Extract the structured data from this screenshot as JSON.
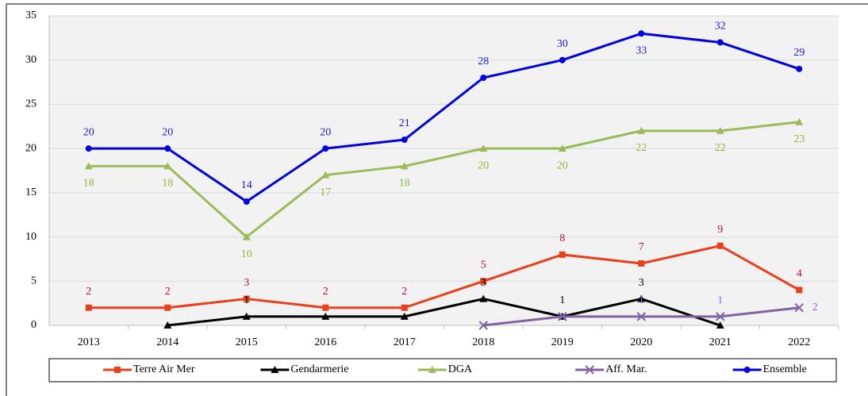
{
  "chart_data": {
    "type": "line",
    "categories": [
      "2013",
      "2014",
      "2015",
      "2016",
      "2017",
      "2018",
      "2019",
      "2020",
      "2021",
      "2022"
    ],
    "series": [
      {
        "name": "Terre Air Mer",
        "color": "#e8401c",
        "label_color": "#b0103c",
        "marker": "square",
        "values": [
          2,
          2,
          3,
          2,
          2,
          5,
          8,
          7,
          9,
          4
        ]
      },
      {
        "name": "Gendarmerie",
        "color": "#000000",
        "label_color": "#000000",
        "marker": "triangle",
        "values": [
          null,
          0,
          1,
          1,
          1,
          3,
          1,
          3,
          0,
          null
        ],
        "value_labels": [
          null,
          null,
          "1",
          null,
          null,
          "3",
          "1",
          "3",
          null,
          null
        ]
      },
      {
        "name": "DGA",
        "color": "#9bbb59",
        "label_color": "#8db83a",
        "marker": "triangle",
        "values": [
          18,
          18,
          10,
          17,
          18,
          20,
          20,
          22,
          22,
          23
        ]
      },
      {
        "name": "Aff. Mar.",
        "color": "#8064a2",
        "label_color": "#9b5de5",
        "marker": "x",
        "values": [
          null,
          null,
          null,
          null,
          null,
          0,
          1,
          1,
          1,
          2
        ],
        "value_labels": [
          null,
          null,
          null,
          null,
          null,
          null,
          null,
          "1",
          "1",
          "2"
        ]
      },
      {
        "name": "Ensemble",
        "color": "#0000e0",
        "label_color": "#1a1ad0",
        "marker": "circle",
        "values": [
          20,
          20,
          14,
          20,
          21,
          28,
          30,
          33,
          32,
          29
        ]
      }
    ],
    "ylim": [
      0,
      35
    ],
    "yticks": [
      0,
      5,
      10,
      15,
      20,
      25,
      30,
      35
    ],
    "grid": true,
    "legend": "bottom"
  }
}
